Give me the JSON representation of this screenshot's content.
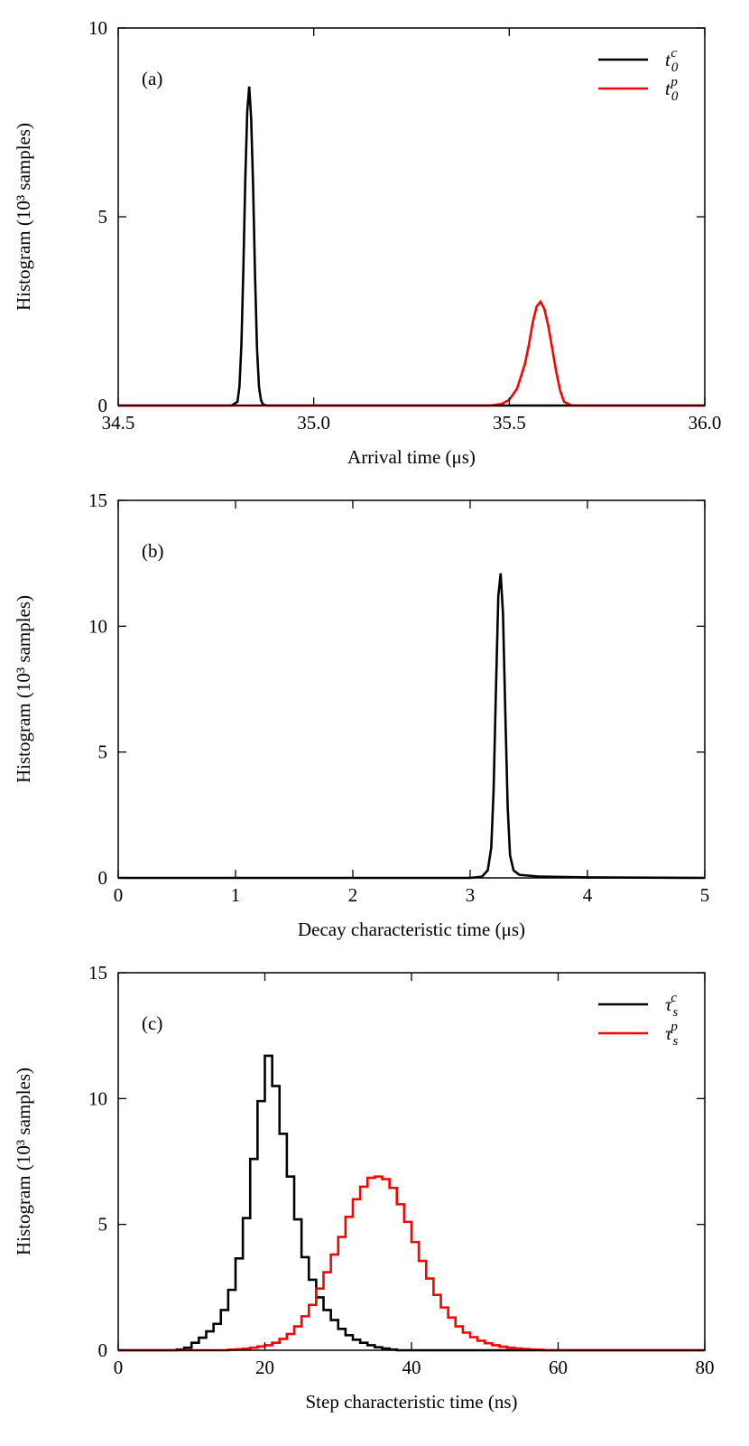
{
  "chart_data": [
    {
      "type": "line",
      "panel_label": "(a)",
      "xlabel": "Arrival time (μs)",
      "ylabel": "Histogram (10³ samples)",
      "xlim": [
        34.5,
        36.0
      ],
      "ylim": [
        0,
        10
      ],
      "xticks": [
        34.5,
        35.0,
        35.5,
        36.0
      ],
      "xtick_labels": [
        "34.5",
        "35.0",
        "35.5",
        "36.0"
      ],
      "yticks": [
        0,
        5,
        10
      ],
      "ytick_labels": [
        "0",
        "5",
        "10"
      ],
      "legend_position": "top-right",
      "series": [
        {
          "name": "t0c",
          "legend_base": "t",
          "legend_sub": "0",
          "legend_sup": "c",
          "color": "#000000",
          "x": [
            34.5,
            34.79,
            34.805,
            34.81,
            34.815,
            34.82,
            34.825,
            34.83,
            34.835,
            34.84,
            34.845,
            34.85,
            34.855,
            34.86,
            34.865,
            34.87,
            34.88,
            36.0
          ],
          "y": [
            0,
            0,
            0.1,
            0.5,
            1.6,
            3.6,
            6.0,
            7.8,
            8.45,
            7.6,
            5.8,
            3.4,
            1.5,
            0.5,
            0.15,
            0.03,
            0,
            0
          ]
        },
        {
          "name": "t0p",
          "legend_base": "t",
          "legend_sub": "0",
          "legend_sup": "p",
          "color": "#ff0000",
          "x": [
            34.5,
            35.45,
            35.48,
            35.5,
            35.52,
            35.54,
            35.55,
            35.56,
            35.57,
            35.58,
            35.59,
            35.6,
            35.61,
            35.62,
            35.63,
            35.64,
            35.66,
            36.0
          ],
          "y": [
            0,
            0,
            0.04,
            0.15,
            0.45,
            1.1,
            1.6,
            2.2,
            2.62,
            2.75,
            2.55,
            2.1,
            1.5,
            0.9,
            0.4,
            0.1,
            0,
            0
          ]
        }
      ]
    },
    {
      "type": "line",
      "panel_label": "(b)",
      "xlabel": "Decay characteristic time (μs)",
      "ylabel": "Histogram (10³ samples)",
      "xlim": [
        0,
        5
      ],
      "ylim": [
        0,
        15
      ],
      "xticks": [
        0,
        1,
        2,
        3,
        4,
        5
      ],
      "xtick_labels": [
        "0",
        "1",
        "2",
        "3",
        "4",
        "5"
      ],
      "yticks": [
        0,
        5,
        10,
        15
      ],
      "ytick_labels": [
        "0",
        "5",
        "10",
        "15"
      ],
      "series": [
        {
          "name": "decay",
          "color": "#000000",
          "x": [
            0,
            3.0,
            3.1,
            3.15,
            3.18,
            3.2,
            3.22,
            3.24,
            3.26,
            3.28,
            3.3,
            3.32,
            3.34,
            3.37,
            3.42,
            3.6,
            4.0,
            5.0
          ],
          "y": [
            0,
            0,
            0.05,
            0.3,
            1.2,
            3.5,
            7.5,
            11.2,
            12.1,
            10.5,
            6.5,
            2.8,
            0.9,
            0.3,
            0.12,
            0.05,
            0.02,
            0
          ]
        }
      ]
    },
    {
      "type": "line",
      "panel_label": "(c)",
      "xlabel": "Step characteristic time (ns)",
      "ylabel": "Histogram (10³ samples)",
      "xlim": [
        0,
        80
      ],
      "ylim": [
        0,
        15
      ],
      "xticks": [
        0,
        20,
        40,
        60,
        80
      ],
      "xtick_labels": [
        "0",
        "20",
        "40",
        "60",
        "80"
      ],
      "yticks": [
        0,
        5,
        10,
        15
      ],
      "ytick_labels": [
        "0",
        "5",
        "10",
        "15"
      ],
      "legend_position": "top-right",
      "bin_width": 1,
      "series": [
        {
          "name": "tauc",
          "legend_base": "τ",
          "legend_sub": "s",
          "legend_sup": "c",
          "color": "#000000",
          "bin_start": 8,
          "values": [
            0.03,
            0.1,
            0.3,
            0.5,
            0.75,
            1.05,
            1.6,
            2.4,
            3.65,
            5.25,
            7.6,
            9.9,
            11.7,
            10.5,
            8.6,
            6.9,
            5.2,
            3.7,
            2.8,
            2.1,
            1.6,
            1.2,
            0.85,
            0.6,
            0.42,
            0.3,
            0.2,
            0.12,
            0.07,
            0.03
          ]
        },
        {
          "name": "taup",
          "legend_base": "τ",
          "legend_sub": "s",
          "legend_sup": "p",
          "color": "#ff0000",
          "bin_start": 15,
          "values": [
            0.02,
            0.04,
            0.06,
            0.1,
            0.15,
            0.2,
            0.3,
            0.45,
            0.65,
            0.95,
            1.35,
            1.8,
            2.45,
            3.1,
            3.8,
            4.5,
            5.3,
            6.0,
            6.5,
            6.85,
            6.9,
            6.8,
            6.45,
            5.8,
            5.1,
            4.3,
            3.55,
            2.85,
            2.2,
            1.7,
            1.3,
            0.95,
            0.7,
            0.52,
            0.38,
            0.28,
            0.2,
            0.14,
            0.1,
            0.07,
            0.05,
            0.03,
            0.02
          ]
        }
      ]
    }
  ]
}
